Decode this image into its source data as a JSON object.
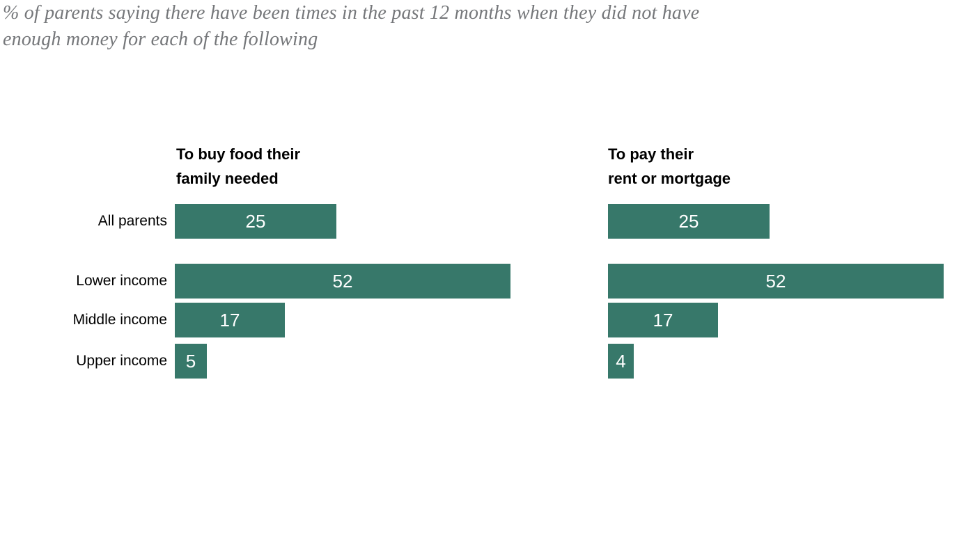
{
  "title": {
    "lines": [
      "% of parents saying there have been times in the past 12 months when they did not have",
      "enough money for each of the following"
    ]
  },
  "colors": {
    "bar": "#37786a",
    "title_text": "#75777a",
    "value_text": "#ffffff",
    "label_text": "#000000"
  },
  "row_labels": [
    "All parents",
    "Lower income",
    "Middle income",
    "Upper income"
  ],
  "panels": [
    {
      "header_line1": "To buy food their",
      "header_line2": "family needed"
    },
    {
      "header_line1": "To pay their",
      "header_line2": "rent or mortgage"
    }
  ],
  "chart_data": {
    "type": "bar",
    "orientation": "horizontal",
    "categories": [
      "All parents",
      "Lower income",
      "Middle income",
      "Upper income"
    ],
    "series": [
      {
        "name": "To buy food their family needed",
        "values": [
          25,
          52,
          17,
          5
        ]
      },
      {
        "name": "To pay their rent or mortgage",
        "values": [
          25,
          52,
          17,
          4
        ]
      }
    ],
    "value_unit": "% of parents",
    "xlim": [
      0,
      55
    ],
    "data_labels": "inside-center",
    "grid": false,
    "legend": "none"
  }
}
